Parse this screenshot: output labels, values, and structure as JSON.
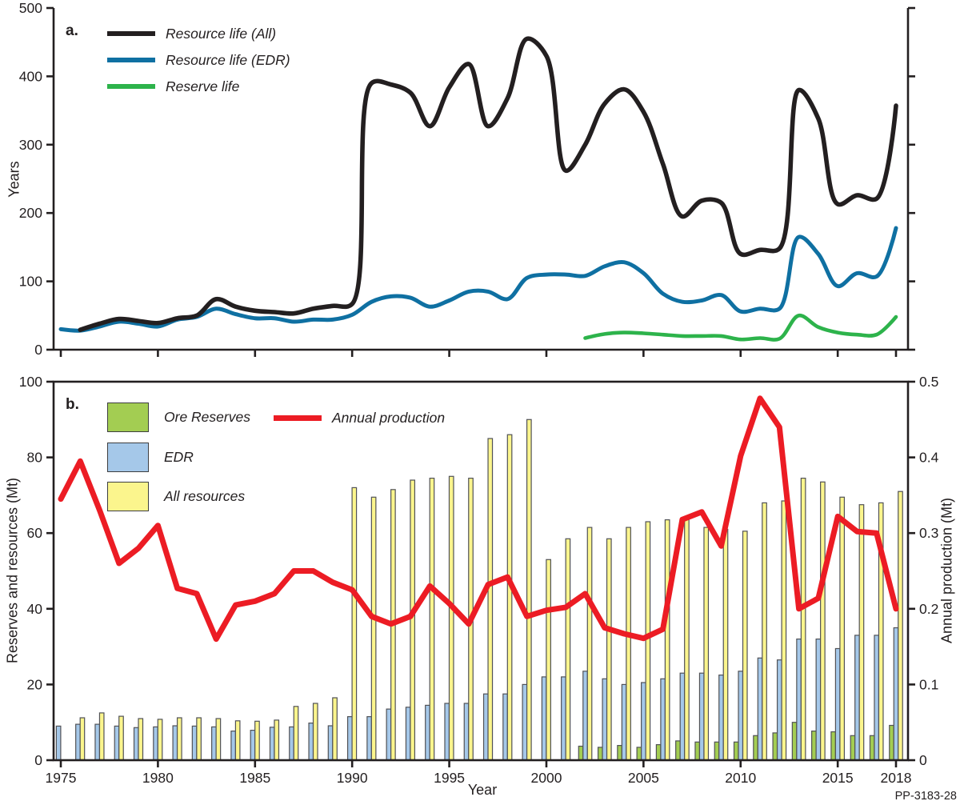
{
  "figure": {
    "number": "PP-3183-28"
  },
  "colors": {
    "axis": "#231f20",
    "text": "#231f20",
    "resource_all": "#231f20",
    "resource_edr": "#0f70a2",
    "reserve_life": "#2db34b",
    "production": "#ec1c24",
    "bar_ore": "#a3cd52",
    "bar_edr": "#a5c8e9",
    "bar_all": "#fbf58d",
    "bar_stroke": "#515256"
  },
  "panel_a": {
    "label": "a.",
    "y_axis": {
      "title": "Years",
      "ticks": [
        0,
        100,
        200,
        300,
        400,
        500
      ],
      "range": [
        0,
        500
      ]
    },
    "legend": [
      {
        "label": "Resource life (All)",
        "color_key": "resource_all"
      },
      {
        "label": "Resource life (EDR)",
        "color_key": "resource_edr"
      },
      {
        "label": "Reserve life",
        "color_key": "reserve_life"
      }
    ]
  },
  "panel_b": {
    "label": "b.",
    "y_axis_left": {
      "title": "Reserves and resources (Mt)",
      "ticks": [
        0,
        20,
        40,
        60,
        80,
        100
      ],
      "range": [
        0,
        100
      ]
    },
    "y_axis_right": {
      "title": "Annual production (Mt)",
      "tick_values": [
        0,
        0.1,
        0.2,
        0.3,
        0.4,
        0.5
      ],
      "tick_labels": [
        "0",
        "0.1",
        "0.2",
        "0.3",
        "0.4",
        "0.5"
      ],
      "range": [
        0,
        0.5
      ]
    },
    "legend_bars": [
      {
        "label": "Ore Reserves",
        "color_key": "bar_ore"
      },
      {
        "label": "EDR",
        "color_key": "bar_edr"
      },
      {
        "label": "All resources",
        "color_key": "bar_all"
      }
    ],
    "legend_line": {
      "label": "Annual production",
      "color_key": "production"
    }
  },
  "x_axis": {
    "title": "Year",
    "ticks": [
      1975,
      1980,
      1985,
      1990,
      1995,
      2000,
      2005,
      2010,
      2015,
      2018
    ],
    "range": [
      1974.6,
      2018.6
    ]
  },
  "chart_data": [
    {
      "type": "line",
      "panel": "a",
      "ylabel": "Years",
      "ylim": [
        0,
        500
      ],
      "yticks": [
        0,
        100,
        200,
        300,
        400,
        500
      ],
      "legend_position": "top-left",
      "grid": false,
      "series": [
        {
          "name": "Resource life (All)",
          "color_key": "resource_all",
          "smooth": true,
          "points": [
            [
              1976,
              29
            ],
            [
              1977,
              38
            ],
            [
              1978,
              45
            ],
            [
              1979,
              42
            ],
            [
              1980,
              39
            ],
            [
              1981,
              46
            ],
            [
              1982,
              50
            ],
            [
              1983,
              74
            ],
            [
              1984,
              63
            ],
            [
              1985,
              57
            ],
            [
              1986,
              55
            ],
            [
              1987,
              53
            ],
            [
              1988,
              60
            ],
            [
              1989,
              64
            ],
            [
              1990,
              67
            ],
            [
              1991,
              390
            ],
            [
              1992,
              388
            ],
            [
              1993,
              376
            ],
            [
              1994,
              327
            ],
            [
              1995,
              384
            ],
            [
              1996,
              418
            ],
            [
              1997,
              327
            ],
            [
              1998,
              368
            ],
            [
              1999,
              455
            ],
            [
              2000,
              430
            ],
            [
              2001,
              262
            ],
            [
              2002,
              300
            ],
            [
              2003,
              360
            ],
            [
              2004,
              381
            ],
            [
              2005,
              348
            ],
            [
              2006,
              272
            ],
            [
              2007,
              195
            ],
            [
              2008,
              218
            ],
            [
              2009,
              215
            ],
            [
              2010,
              140
            ],
            [
              2011,
              146
            ],
            [
              2012,
              148
            ],
            [
              2013,
              380
            ],
            [
              2014,
              338
            ],
            [
              2015,
              213
            ],
            [
              2016,
              226
            ],
            [
              2017,
              221
            ],
            [
              2018,
              357
            ]
          ]
        },
        {
          "name": "Resource life (EDR)",
          "color_key": "resource_edr",
          "smooth": true,
          "points": [
            [
              1975,
              30
            ],
            [
              1976,
              28
            ],
            [
              1977,
              34
            ],
            [
              1978,
              41
            ],
            [
              1979,
              38
            ],
            [
              1980,
              34
            ],
            [
              1981,
              44
            ],
            [
              1982,
              48
            ],
            [
              1983,
              60
            ],
            [
              1984,
              52
            ],
            [
              1985,
              46
            ],
            [
              1986,
              46
            ],
            [
              1987,
              41
            ],
            [
              1988,
              44
            ],
            [
              1989,
              44
            ],
            [
              1990,
              51
            ],
            [
              1991,
              70
            ],
            [
              1992,
              78
            ],
            [
              1993,
              76
            ],
            [
              1994,
              63
            ],
            [
              1995,
              72
            ],
            [
              1996,
              85
            ],
            [
              1997,
              85
            ],
            [
              1998,
              74
            ],
            [
              1999,
              105
            ],
            [
              2000,
              110
            ],
            [
              2001,
              110
            ],
            [
              2002,
              108
            ],
            [
              2003,
              122
            ],
            [
              2004,
              128
            ],
            [
              2005,
              112
            ],
            [
              2006,
              82
            ],
            [
              2007,
              70
            ],
            [
              2008,
              72
            ],
            [
              2009,
              80
            ],
            [
              2010,
              56
            ],
            [
              2011,
              60
            ],
            [
              2012,
              60
            ],
            [
              2013,
              165
            ],
            [
              2014,
              140
            ],
            [
              2015,
              93
            ],
            [
              2016,
              112
            ],
            [
              2017,
              107
            ],
            [
              2018,
              178
            ]
          ]
        },
        {
          "name": "Reserve life",
          "color_key": "reserve_life",
          "smooth": true,
          "points": [
            [
              2002,
              17
            ],
            [
              2003,
              23
            ],
            [
              2004,
              25
            ],
            [
              2005,
              24
            ],
            [
              2006,
              22
            ],
            [
              2007,
              20
            ],
            [
              2008,
              20
            ],
            [
              2009,
              20
            ],
            [
              2010,
              15
            ],
            [
              2011,
              17
            ],
            [
              2012,
              16
            ],
            [
              2013,
              50
            ],
            [
              2014,
              33
            ],
            [
              2015,
              25
            ],
            [
              2016,
              22
            ],
            [
              2017,
              22
            ],
            [
              2018,
              48
            ]
          ]
        }
      ]
    },
    {
      "type": "bar+line",
      "panel": "b",
      "xlabel": "Year",
      "ylabel_left": "Reserves and resources (Mt)",
      "ylabel_right": "Annual production (Mt)",
      "ylim_left": [
        0,
        100
      ],
      "ylim_right": [
        0,
        0.5
      ],
      "grid": false,
      "years": [
        1975,
        1976,
        1977,
        1978,
        1979,
        1980,
        1981,
        1982,
        1983,
        1984,
        1985,
        1986,
        1987,
        1988,
        1989,
        1990,
        1991,
        1992,
        1993,
        1994,
        1995,
        1996,
        1997,
        1998,
        1999,
        2000,
        2001,
        2002,
        2003,
        2004,
        2005,
        2006,
        2007,
        2008,
        2009,
        2010,
        2011,
        2012,
        2013,
        2014,
        2015,
        2016,
        2017,
        2018
      ],
      "bar_series": [
        {
          "name": "Ore Reserves",
          "color_key": "bar_ore",
          "values": [
            null,
            null,
            null,
            null,
            null,
            null,
            null,
            null,
            null,
            null,
            null,
            null,
            null,
            null,
            null,
            null,
            null,
            null,
            null,
            null,
            null,
            null,
            null,
            null,
            null,
            null,
            null,
            3.7,
            3.4,
            3.9,
            3.4,
            4.1,
            5.1,
            4.8,
            4.8,
            4.8,
            6.5,
            7.2,
            10,
            7.7,
            7.5,
            6.5,
            6.5,
            9.2
          ]
        },
        {
          "name": "EDR",
          "color_key": "bar_edr",
          "values": [
            9,
            9.5,
            9.5,
            9,
            8.6,
            8.8,
            9.1,
            9,
            8.8,
            7.7,
            7.9,
            8.7,
            8.8,
            9.8,
            9.1,
            11.5,
            11.5,
            13.5,
            14,
            14.5,
            15,
            15,
            17.5,
            17.5,
            20,
            22,
            22,
            23.5,
            21.5,
            20,
            20.5,
            21.5,
            23,
            23,
            22.5,
            23.5,
            27,
            26.5,
            32,
            32,
            29.5,
            33,
            33,
            35
          ]
        },
        {
          "name": "All resources",
          "color_key": "bar_all",
          "values": [
            null,
            11.2,
            12.5,
            11.6,
            11,
            10.8,
            11.2,
            11.2,
            11,
            10.4,
            10.3,
            10.6,
            14.2,
            15,
            16.5,
            72,
            69.5,
            71.5,
            74,
            74.5,
            75,
            74.5,
            85,
            86,
            90,
            53,
            58.5,
            61.5,
            58.5,
            61.5,
            63,
            63.5,
            64,
            61.5,
            61,
            60.5,
            68,
            68.5,
            74.5,
            73.5,
            69.5,
            67.5,
            68,
            71
          ]
        }
      ],
      "line_series": [
        {
          "name": "Annual production",
          "color_key": "production",
          "axis": "right",
          "values": [
            0.345,
            0.395,
            0.33,
            0.26,
            0.28,
            0.31,
            0.227,
            0.22,
            0.16,
            0.205,
            0.21,
            0.22,
            0.25,
            0.25,
            0.235,
            0.225,
            0.19,
            0.18,
            0.19,
            0.23,
            0.207,
            0.18,
            0.232,
            0.242,
            0.19,
            0.198,
            0.202,
            0.22,
            0.175,
            0.167,
            0.161,
            0.173,
            0.318,
            0.328,
            0.283,
            0.402,
            0.478,
            0.44,
            0.2,
            0.214,
            0.322,
            0.302,
            0.3,
            0.2
          ]
        }
      ]
    }
  ]
}
